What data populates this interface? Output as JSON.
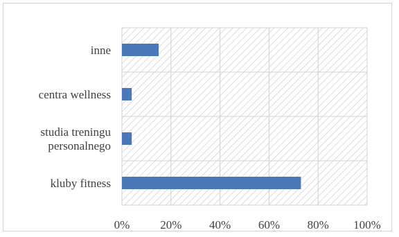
{
  "chart_data": {
    "type": "bar",
    "orientation": "horizontal",
    "categories": [
      "kluby fitness",
      "studia treningu personalnego",
      "centra wellness",
      "inne"
    ],
    "category_label_lines": [
      [
        "kluby fitness"
      ],
      [
        "studia treningu",
        "personalnego"
      ],
      [
        "centra wellness"
      ],
      [
        "inne"
      ]
    ],
    "values": [
      73,
      4,
      4,
      15
    ],
    "xlim": [
      0,
      100
    ],
    "x_ticks": [
      0,
      20,
      40,
      60,
      80,
      100
    ],
    "x_tick_labels": [
      "0%",
      "20%",
      "40%",
      "60%",
      "80%",
      "100%"
    ],
    "grid": true,
    "plot_background": "hatched",
    "bar_color": "#4a78b8",
    "title": "",
    "xlabel": "",
    "ylabel": ""
  }
}
